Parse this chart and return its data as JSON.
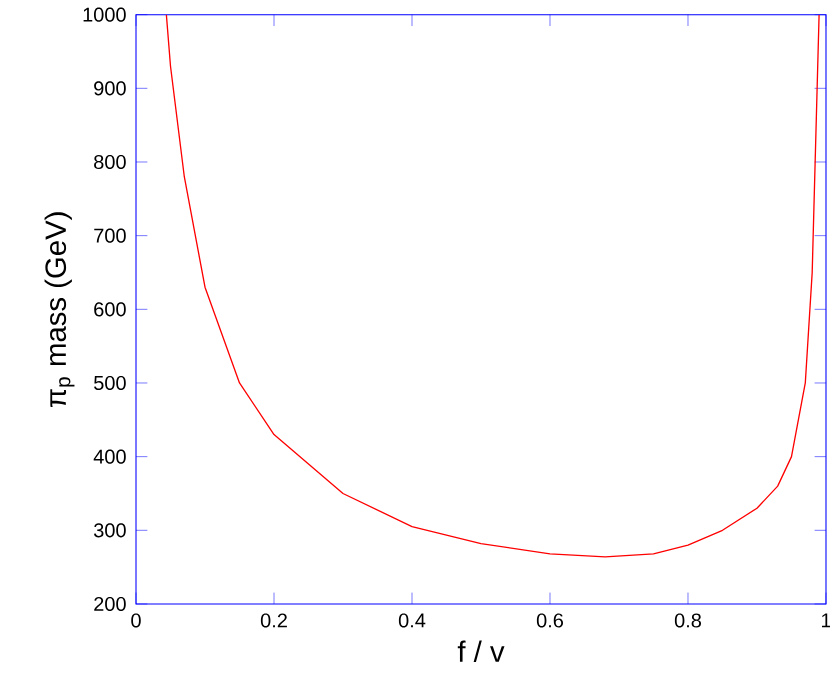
{
  "chart_data": {
    "type": "line",
    "xlabel": "f / v",
    "ylabel": "π$_{p}$ mass (GeV)",
    "xlim": [
      0,
      1
    ],
    "ylim": [
      200,
      1000
    ],
    "xticks": [
      0,
      0.2,
      0.4,
      0.6,
      0.8,
      1
    ],
    "yticks": [
      200,
      300,
      400,
      500,
      600,
      700,
      800,
      900,
      1000
    ],
    "series": [
      {
        "color": "#ff0000",
        "x": [
          0.044,
          0.05,
          0.07,
          0.1,
          0.15,
          0.2,
          0.3,
          0.4,
          0.5,
          0.6,
          0.68,
          0.75,
          0.8,
          0.85,
          0.9,
          0.93,
          0.95,
          0.97,
          0.98,
          0.99
        ],
        "values": [
          1000,
          930,
          780,
          630,
          500,
          430,
          350,
          305,
          282,
          268,
          264,
          268,
          280,
          300,
          330,
          360,
          400,
          500,
          650,
          1000
        ]
      }
    ],
    "grid": false,
    "legend": false,
    "marker": "none",
    "line_style": "solid"
  }
}
